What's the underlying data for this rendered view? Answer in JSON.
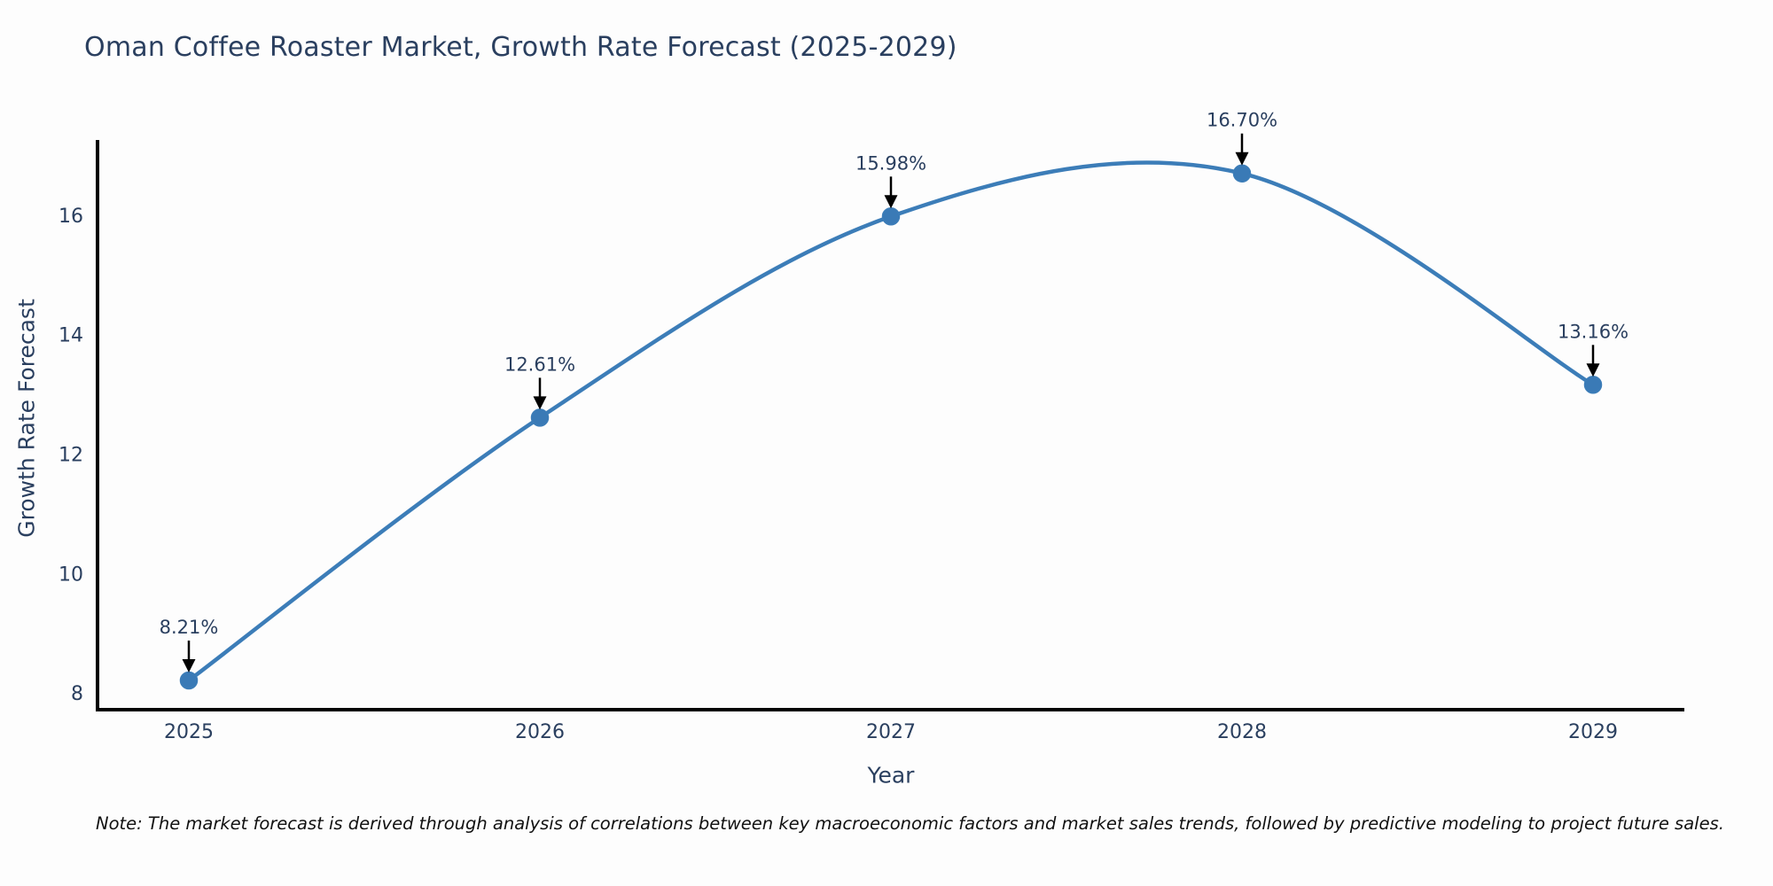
{
  "chart_data": {
    "type": "line",
    "title": "Oman Coffee Roaster Market, Growth Rate Forecast (2025-2029)",
    "xlabel": "Year",
    "ylabel": "Growth Rate Forecast",
    "x": [
      2025,
      2026,
      2027,
      2028,
      2029
    ],
    "series": [
      {
        "name": "Growth Rate Forecast",
        "values": [
          8.21,
          12.61,
          15.98,
          16.7,
          13.16
        ]
      }
    ],
    "point_labels": [
      "8.21%",
      "12.61%",
      "15.98%",
      "16.70%",
      "13.16%"
    ],
    "yticks": [
      8,
      10,
      12,
      14,
      16
    ],
    "ylim": [
      7.72,
      17.26
    ],
    "line_shape": "spline",
    "grid": false,
    "legend": false,
    "colors": {
      "line": "#3c7db8",
      "marker": "#3a7ab6",
      "axis": "#000000",
      "text": "#2a3f5f",
      "annotation_arrow": "#000000"
    }
  },
  "note": {
    "text": "Note: The market forecast is derived through analysis of correlations between key macroeconomic factors and market sales trends, followed by predictive modeling to project future sales."
  }
}
